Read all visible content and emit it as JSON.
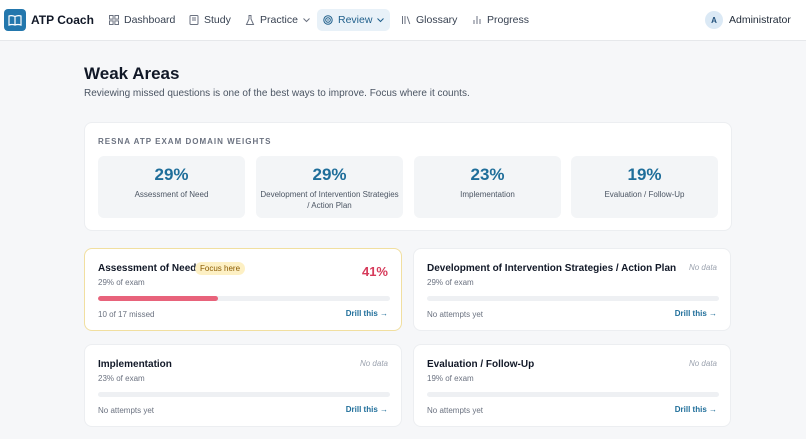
{
  "nav": {
    "brand": "ATP Coach",
    "items": [
      {
        "label": "Dashboard"
      },
      {
        "label": "Study"
      },
      {
        "label": "Practice"
      },
      {
        "label": "Review"
      },
      {
        "label": "Glossary"
      },
      {
        "label": "Progress"
      }
    ],
    "active": "Review",
    "user": {
      "initial": "A",
      "name": "Administrator"
    }
  },
  "page": {
    "title": "Weak Areas",
    "subtitle": "Reviewing missed questions is one of the best ways to improve. Focus where it counts."
  },
  "weights": {
    "heading": "RESNA ATP EXAM DOMAIN WEIGHTS",
    "items": [
      {
        "pct": "29%",
        "label": "Assessment of Need"
      },
      {
        "pct": "29%",
        "label": "Development of Intervention Strategies / Action Plan"
      },
      {
        "pct": "23%",
        "label": "Implementation"
      },
      {
        "pct": "19%",
        "label": "Evaluation / Follow-Up"
      }
    ]
  },
  "areas": [
    {
      "title": "Assessment of Need",
      "badge": "Focus here",
      "sub": "29% of exam",
      "pct": "41%",
      "progress": 0.41,
      "footer": "10 of 17 missed",
      "drill": "Drill this →",
      "accent": "#e8637b"
    },
    {
      "title": "Development of Intervention Strategies / Action Plan",
      "nodata": "No data",
      "sub": "29% of exam",
      "footer": "No attempts yet",
      "drill": "Drill this →"
    },
    {
      "title": "Implementation",
      "nodata": "No data",
      "sub": "23% of exam",
      "footer": "No attempts yet",
      "drill": "Drill this →"
    },
    {
      "title": "Evaluation / Follow-Up",
      "nodata": "No data",
      "sub": "19% of exam",
      "footer": "No attempts yet",
      "drill": "Drill this →"
    }
  ],
  "colors": {
    "brand": "#2377ad",
    "accent": "#1f6e9a",
    "danger": "#d63a5a",
    "focus_badge": "#fdf0c4"
  }
}
